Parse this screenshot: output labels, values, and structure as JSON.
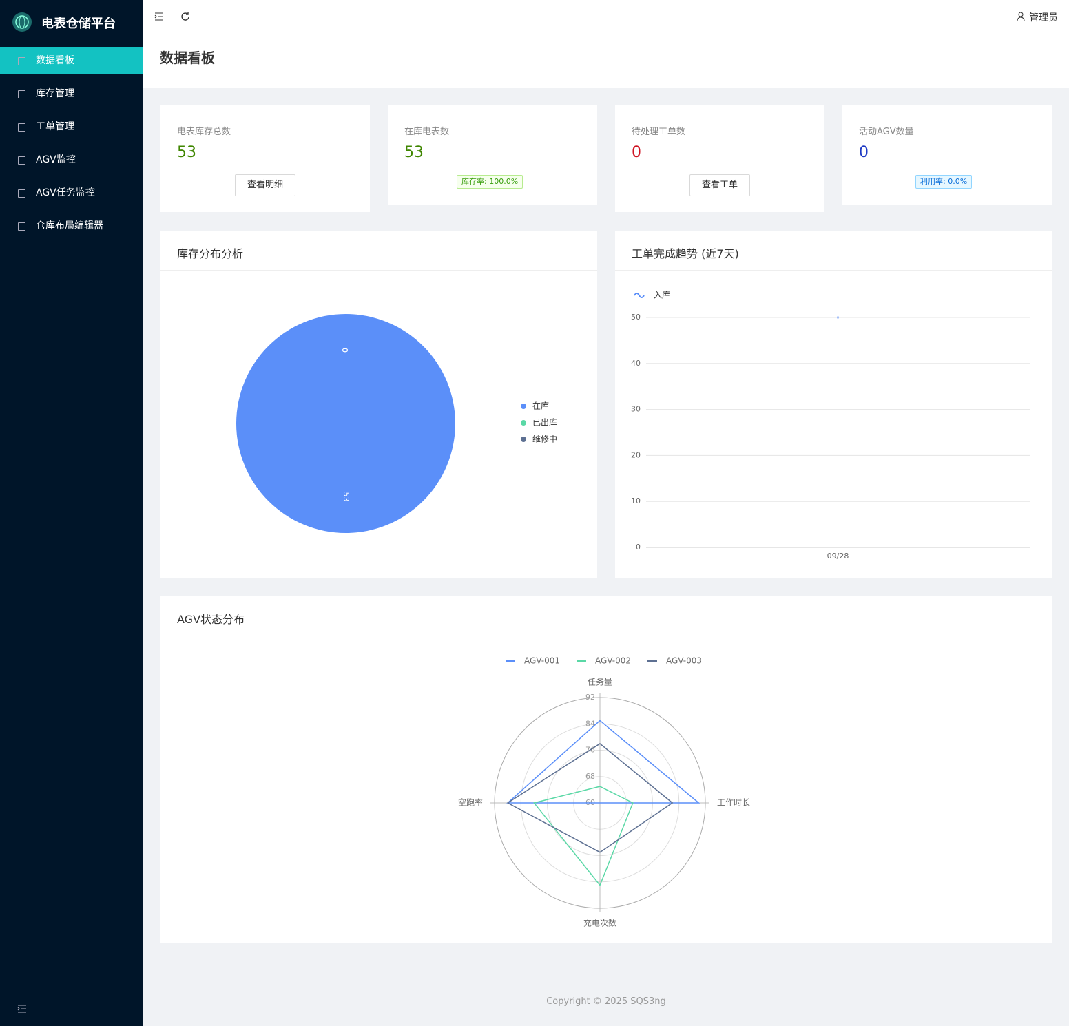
{
  "sidebar": {
    "brand": "电表仓储平台",
    "menu": [
      "数据看板",
      "库存管理",
      "工单管理",
      "AGV监控",
      "AGV任务监控",
      "仓库布局编辑器"
    ]
  },
  "header": {
    "user": "管理员"
  },
  "page_title": "数据看板",
  "stats": [
    {
      "label": "电表库存总数",
      "value": 53,
      "button": "查看明细"
    },
    {
      "label": "在库电表数",
      "value": 53,
      "tag": "库存率: 100.0%"
    },
    {
      "label": "待处理工单数",
      "value": 0,
      "button": "查看工单"
    },
    {
      "label": "活动AGV数量",
      "value": 0,
      "tag": "利用率: 0.0%"
    }
  ],
  "chart_data": [
    {
      "type": "pie",
      "title": "库存分布分析",
      "categories": [
        "在库",
        "已出库",
        "维修中"
      ],
      "values": [
        53,
        0,
        0
      ],
      "colors": [
        "#5B8FF9",
        "#5AD8A6",
        "#5D7092"
      ],
      "legend": "right"
    },
    {
      "type": "line",
      "title": "工单完成趋势 (近7天)",
      "x": [
        "09/28"
      ],
      "series": [
        {
          "name": "入库",
          "color": "#5B8FF9",
          "values": [
            50
          ]
        }
      ],
      "ylim": [
        0,
        50
      ],
      "yticks": [
        0,
        10,
        20,
        30,
        40,
        50
      ],
      "grid": true,
      "legend": "top-left"
    },
    {
      "type": "radar",
      "title": "AGV状态分布",
      "indicators": [
        "任务量",
        "工作时长",
        "充电次数",
        "空跑率"
      ],
      "rlim": [
        60,
        92
      ],
      "rticks": [
        60,
        68,
        76,
        84,
        92
      ],
      "legend": "top",
      "series": [
        {
          "name": "AGV-001",
          "color": "#5B8FF9",
          "values": [
            85,
            90,
            60,
            88
          ]
        },
        {
          "name": "AGV-002",
          "color": "#5AD8A6",
          "values": [
            65,
            70,
            85,
            80
          ]
        },
        {
          "name": "AGV-003",
          "color": "#5D7092",
          "values": [
            78,
            82,
            75,
            88
          ]
        }
      ]
    }
  ],
  "footer": "Copyright © 2025 SQS3ng"
}
